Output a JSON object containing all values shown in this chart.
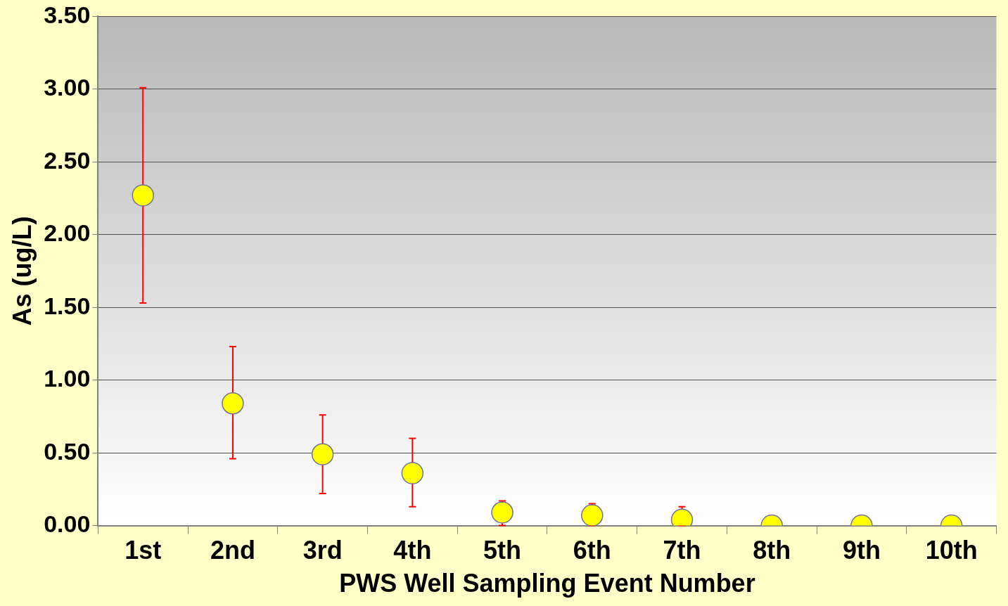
{
  "chart_data": {
    "type": "scatter",
    "xlabel": "PWS Well Sampling Event Number",
    "ylabel": "As (ug/L)",
    "categories": [
      "1st",
      "2nd",
      "3rd",
      "4th",
      "5th",
      "6th",
      "7th",
      "8th",
      "9th",
      "10th"
    ],
    "series": [
      {
        "color": "#ffff00",
        "values": [
          2.27,
          0.84,
          0.49,
          0.36,
          0.09,
          0.07,
          0.04,
          0,
          0,
          0
        ],
        "errors": [
          [
            1.53,
            3.01
          ],
          [
            0.46,
            1.23
          ],
          [
            0.22,
            0.76
          ],
          [
            0.13,
            0.6
          ],
          [
            0,
            0.17
          ],
          [
            0,
            0.15
          ],
          [
            0,
            0.13
          ],
          null,
          null,
          null
        ]
      }
    ],
    "ylim": [
      0,
      3.5
    ],
    "yticks": [
      {
        "value": 0,
        "label": "0.00"
      },
      {
        "value": 0.5,
        "label": "0.50"
      },
      {
        "value": 1,
        "label": "1.00"
      },
      {
        "value": 1.5,
        "label": "1.50"
      },
      {
        "value": 2,
        "label": "2.00"
      },
      {
        "value": 2.5,
        "label": "2.50"
      },
      {
        "value": 3,
        "label": "3.00"
      },
      {
        "value": 3.5,
        "label": "3.50"
      }
    ],
    "grid": "y",
    "marker": "circle",
    "legend": false
  }
}
